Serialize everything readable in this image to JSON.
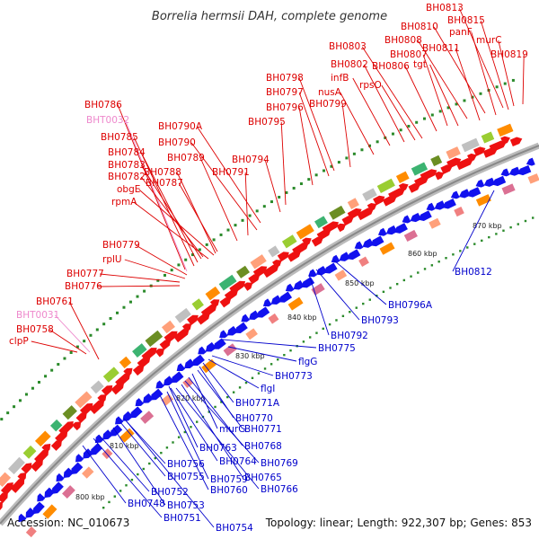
{
  "title": "Borrelia hermsii DAH, complete genome",
  "footer": {
    "accession": "Accession: NC_010673",
    "topology": "Topology: linear; Length: 922,307 bp; Genes: 853"
  },
  "colors": {
    "forward_label": "#dd0000",
    "reverse_label": "#0000cc",
    "rna_label": "#ee88cc",
    "forward_gene": "#ee1111",
    "reverse_gene": "#1111ee",
    "backbone": "#888888",
    "dot_green": "#2a8a2a"
  },
  "ticks": [
    "800 kbp",
    "810 kbp",
    "820 kbp",
    "830 kbp",
    "840 kbp",
    "850 kbp",
    "860 kbp",
    "870 kbp"
  ],
  "forward_labels": [
    {
      "text": "BH0813",
      "kind": "gene"
    },
    {
      "text": "BH0815",
      "kind": "gene"
    },
    {
      "text": "BH0810",
      "kind": "gene"
    },
    {
      "text": "panF",
      "kind": "gene"
    },
    {
      "text": "BH0808",
      "kind": "gene"
    },
    {
      "text": "BH0811",
      "kind": "gene"
    },
    {
      "text": "murC",
      "kind": "gene"
    },
    {
      "text": "BH0803",
      "kind": "gene"
    },
    {
      "text": "BH0807",
      "kind": "gene"
    },
    {
      "text": "BH0819",
      "kind": "gene"
    },
    {
      "text": "BH0802",
      "kind": "gene"
    },
    {
      "text": "BH0806",
      "kind": "gene"
    },
    {
      "text": "tgt",
      "kind": "gene"
    },
    {
      "text": "infB",
      "kind": "gene"
    },
    {
      "text": "BH0798",
      "kind": "gene"
    },
    {
      "text": "rpsO",
      "kind": "gene"
    },
    {
      "text": "BH0797",
      "kind": "gene"
    },
    {
      "text": "nusA",
      "kind": "gene"
    },
    {
      "text": "BH0796",
      "kind": "gene"
    },
    {
      "text": "BH0799",
      "kind": "gene"
    },
    {
      "text": "BH0786",
      "kind": "gene"
    },
    {
      "text": "BH0795",
      "kind": "gene"
    },
    {
      "text": "BHT0032",
      "kind": "rna"
    },
    {
      "text": "BH0790A",
      "kind": "gene"
    },
    {
      "text": "BH0785",
      "kind": "gene"
    },
    {
      "text": "BH0790",
      "kind": "gene"
    },
    {
      "text": "BH0784",
      "kind": "gene"
    },
    {
      "text": "BH0789",
      "kind": "gene"
    },
    {
      "text": "BH0794",
      "kind": "gene"
    },
    {
      "text": "BH0783",
      "kind": "gene"
    },
    {
      "text": "BH0788",
      "kind": "gene"
    },
    {
      "text": "BH0791",
      "kind": "gene"
    },
    {
      "text": "BH0782",
      "kind": "gene"
    },
    {
      "text": "BH0787",
      "kind": "gene"
    },
    {
      "text": "obgE",
      "kind": "gene"
    },
    {
      "text": "rpmA",
      "kind": "gene"
    },
    {
      "text": "BH0779",
      "kind": "gene"
    },
    {
      "text": "rplU",
      "kind": "gene"
    },
    {
      "text": "BH0777",
      "kind": "gene"
    },
    {
      "text": "BH0776",
      "kind": "gene"
    },
    {
      "text": "BH0761",
      "kind": "gene"
    },
    {
      "text": "BHT0031",
      "kind": "rna"
    },
    {
      "text": "BH0758",
      "kind": "gene"
    },
    {
      "text": "clpP",
      "kind": "gene"
    }
  ],
  "reverse_labels": [
    {
      "text": "BH0812"
    },
    {
      "text": "BH0796A"
    },
    {
      "text": "BH0793"
    },
    {
      "text": "BH0792"
    },
    {
      "text": "BH0775"
    },
    {
      "text": "flgG"
    },
    {
      "text": "BH0773"
    },
    {
      "text": "flgI"
    },
    {
      "text": "BH0771A"
    },
    {
      "text": "BH0770"
    },
    {
      "text": "BH0771"
    },
    {
      "text": "murG"
    },
    {
      "text": "BH0768"
    },
    {
      "text": "BH0763"
    },
    {
      "text": "BH0769"
    },
    {
      "text": "BH0764"
    },
    {
      "text": "BH0756"
    },
    {
      "text": "BH0759"
    },
    {
      "text": "BH0765"
    },
    {
      "text": "BH0755"
    },
    {
      "text": "BH0760"
    },
    {
      "text": "BH0766"
    },
    {
      "text": "BH0752"
    },
    {
      "text": "BH0753"
    },
    {
      "text": "BH0748"
    },
    {
      "text": "BH0751"
    },
    {
      "text": "BH0754"
    }
  ]
}
